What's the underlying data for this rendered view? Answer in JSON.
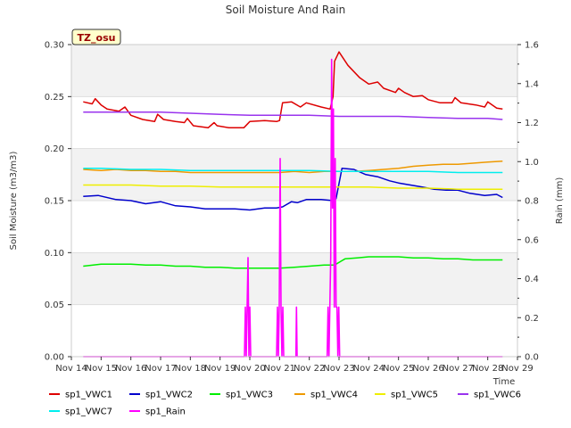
{
  "chart_data": {
    "type": "line",
    "title": "Soil Moisture And Rain",
    "tag": "TZ_osu",
    "xlabel": "Time",
    "ylabel": "Soil Moisture (m3/m3)",
    "y2label": "Rain (mm)",
    "xlim": [
      14,
      29
    ],
    "ylim": [
      0,
      0.3
    ],
    "y2lim": [
      0,
      1.6
    ],
    "x_ticks": [
      14,
      15,
      16,
      17,
      18,
      19,
      20,
      21,
      22,
      23,
      24,
      25,
      26,
      27,
      28,
      29
    ],
    "x_tick_labels": [
      "Nov 14",
      "Nov 15",
      "Nov 16",
      "Nov 17",
      "Nov 18",
      "Nov 19",
      "Nov 20",
      "Nov 21",
      "Nov 22",
      "Nov 23",
      "Nov 24",
      "Nov 25",
      "Nov 26",
      "Nov 27",
      "Nov 28",
      "Nov 29"
    ],
    "y_ticks": [
      0.0,
      0.05,
      0.1,
      0.15,
      0.2,
      0.25,
      0.3
    ],
    "y_tick_labels": [
      "0.00",
      "0.05",
      "0.10",
      "0.15",
      "0.20",
      "0.25",
      "0.30"
    ],
    "y2_ticks": [
      0.0,
      0.2,
      0.4,
      0.6,
      0.8,
      1.0,
      1.2,
      1.4,
      1.6
    ],
    "y2_tick_labels": [
      "0.0",
      "0.2",
      "0.4",
      "0.6",
      "0.8",
      "1.0",
      "1.2",
      "1.4",
      "1.6"
    ],
    "grid": "horizontal bands",
    "legend_position": "bottom",
    "series": [
      {
        "name": "sp1_VWC1",
        "color": "#dd0000",
        "axis": "left",
        "x": [
          14.4,
          14.7,
          14.8,
          15.0,
          15.2,
          15.6,
          15.8,
          16.0,
          16.4,
          16.8,
          16.9,
          17.1,
          17.5,
          17.8,
          17.9,
          18.1,
          18.6,
          18.8,
          18.9,
          19.3,
          19.8,
          20.0,
          20.5,
          20.9,
          21.0,
          21.1,
          21.4,
          21.7,
          21.9,
          22.4,
          22.7,
          22.8,
          22.85,
          23.0,
          23.3,
          23.7,
          24.0,
          24.3,
          24.5,
          24.9,
          25.0,
          25.2,
          25.5,
          25.8,
          26.0,
          26.4,
          26.8,
          26.9,
          27.1,
          27.6,
          27.9,
          28.0,
          28.3,
          28.5
        ],
        "values": [
          0.245,
          0.243,
          0.248,
          0.242,
          0.238,
          0.236,
          0.24,
          0.232,
          0.228,
          0.226,
          0.233,
          0.228,
          0.226,
          0.225,
          0.229,
          0.222,
          0.22,
          0.225,
          0.222,
          0.22,
          0.22,
          0.226,
          0.227,
          0.226,
          0.227,
          0.244,
          0.245,
          0.24,
          0.244,
          0.24,
          0.238,
          0.25,
          0.284,
          0.293,
          0.28,
          0.268,
          0.262,
          0.264,
          0.258,
          0.254,
          0.258,
          0.254,
          0.25,
          0.251,
          0.247,
          0.244,
          0.244,
          0.249,
          0.244,
          0.242,
          0.24,
          0.245,
          0.239,
          0.238
        ]
      },
      {
        "name": "sp1_VWC2",
        "color": "#0000cc",
        "axis": "left",
        "x": [
          14.4,
          14.9,
          15.5,
          16.0,
          16.5,
          17.0,
          17.5,
          18.0,
          18.5,
          19.0,
          19.5,
          20.0,
          20.5,
          20.9,
          21.1,
          21.4,
          21.6,
          21.9,
          22.4,
          22.8,
          22.9,
          23.1,
          23.5,
          23.9,
          24.3,
          24.7,
          25.0,
          25.4,
          25.8,
          26.2,
          26.6,
          27.0,
          27.4,
          27.9,
          28.3,
          28.5
        ],
        "values": [
          0.154,
          0.155,
          0.151,
          0.15,
          0.147,
          0.149,
          0.145,
          0.144,
          0.142,
          0.142,
          0.142,
          0.141,
          0.143,
          0.143,
          0.144,
          0.149,
          0.148,
          0.151,
          0.151,
          0.15,
          0.152,
          0.181,
          0.18,
          0.175,
          0.173,
          0.169,
          0.167,
          0.165,
          0.163,
          0.161,
          0.16,
          0.16,
          0.157,
          0.155,
          0.156,
          0.153
        ]
      },
      {
        "name": "sp1_VWC3",
        "color": "#00ee00",
        "axis": "left",
        "x": [
          14.4,
          15.0,
          15.5,
          16.0,
          16.5,
          17.0,
          17.5,
          18.0,
          18.5,
          19.0,
          19.5,
          20.0,
          20.5,
          21.0,
          21.5,
          22.0,
          22.5,
          22.8,
          22.9,
          23.2,
          23.6,
          24.0,
          24.5,
          25.0,
          25.5,
          26.0,
          26.5,
          27.0,
          27.5,
          28.0,
          28.5
        ],
        "values": [
          0.087,
          0.089,
          0.089,
          0.089,
          0.088,
          0.088,
          0.087,
          0.087,
          0.086,
          0.086,
          0.085,
          0.085,
          0.085,
          0.085,
          0.086,
          0.087,
          0.088,
          0.088,
          0.089,
          0.094,
          0.095,
          0.096,
          0.096,
          0.096,
          0.095,
          0.095,
          0.094,
          0.094,
          0.093,
          0.093,
          0.093
        ]
      },
      {
        "name": "sp1_VWC4",
        "color": "#ee9900",
        "axis": "left",
        "x": [
          14.4,
          15.0,
          15.5,
          16.0,
          16.5,
          17.0,
          17.5,
          18.0,
          18.5,
          19.0,
          19.5,
          20.0,
          20.5,
          21.0,
          21.5,
          22.0,
          22.5,
          23.0,
          23.5,
          24.0,
          24.5,
          25.0,
          25.5,
          26.0,
          26.5,
          27.0,
          27.5,
          28.0,
          28.5
        ],
        "values": [
          0.18,
          0.179,
          0.18,
          0.179,
          0.179,
          0.178,
          0.178,
          0.177,
          0.177,
          0.177,
          0.177,
          0.177,
          0.177,
          0.177,
          0.178,
          0.177,
          0.178,
          0.178,
          0.178,
          0.179,
          0.18,
          0.181,
          0.183,
          0.184,
          0.185,
          0.185,
          0.186,
          0.187,
          0.188
        ]
      },
      {
        "name": "sp1_VWC5",
        "color": "#eeee00",
        "axis": "left",
        "x": [
          14.4,
          15.0,
          16.0,
          17.0,
          18.0,
          19.0,
          20.0,
          21.0,
          22.0,
          23.0,
          24.0,
          25.0,
          26.0,
          27.0,
          28.0,
          28.5
        ],
        "values": [
          0.165,
          0.165,
          0.165,
          0.164,
          0.164,
          0.163,
          0.163,
          0.163,
          0.163,
          0.163,
          0.163,
          0.162,
          0.162,
          0.161,
          0.161,
          0.161
        ]
      },
      {
        "name": "sp1_VWC6",
        "color": "#9933ee",
        "axis": "left",
        "x": [
          14.4,
          15.0,
          16.0,
          17.0,
          18.0,
          19.0,
          20.0,
          21.0,
          22.0,
          23.0,
          24.0,
          25.0,
          26.0,
          27.0,
          28.0,
          28.5
        ],
        "values": [
          0.235,
          0.235,
          0.235,
          0.235,
          0.234,
          0.233,
          0.232,
          0.232,
          0.232,
          0.231,
          0.231,
          0.231,
          0.23,
          0.229,
          0.229,
          0.228
        ]
      },
      {
        "name": "sp1_VWC7",
        "color": "#00eeee",
        "axis": "left",
        "x": [
          14.4,
          15.0,
          16.0,
          17.0,
          18.0,
          19.0,
          20.0,
          21.0,
          22.0,
          23.0,
          24.0,
          25.0,
          26.0,
          27.0,
          28.0,
          28.5
        ],
        "values": [
          0.181,
          0.181,
          0.18,
          0.18,
          0.179,
          0.179,
          0.179,
          0.179,
          0.179,
          0.178,
          0.178,
          0.178,
          0.178,
          0.177,
          0.177,
          0.177
        ]
      },
      {
        "name": "sp1_Rain",
        "color": "#ff00ff",
        "axis": "right",
        "x": [
          14.4,
          19.82,
          19.85,
          19.88,
          19.91,
          19.94,
          19.97,
          20.0,
          20.03,
          20.06,
          20.9,
          20.93,
          20.96,
          20.99,
          21.02,
          21.05,
          21.08,
          21.11,
          21.14,
          21.17,
          21.2,
          21.55,
          21.57,
          21.59,
          22.6,
          22.63,
          22.66,
          22.69,
          22.72,
          22.75,
          22.78,
          22.81,
          22.84,
          22.87,
          22.9,
          22.93,
          22.96,
          22.99,
          23.02,
          28.5
        ],
        "values": [
          0.0,
          0.0,
          0.254,
          0.0,
          0.254,
          0.508,
          0.0,
          0.254,
          0.0,
          0.0,
          0.0,
          0.254,
          0.0,
          0.254,
          1.016,
          0.254,
          0.0,
          0.254,
          0.0,
          0.0,
          0.0,
          0.0,
          0.254,
          0.0,
          0.0,
          0.254,
          0.0,
          0.254,
          0.508,
          1.524,
          0.762,
          1.27,
          0.254,
          1.016,
          0.254,
          0.254,
          0.0,
          0.254,
          0.0,
          0.0
        ]
      }
    ]
  }
}
